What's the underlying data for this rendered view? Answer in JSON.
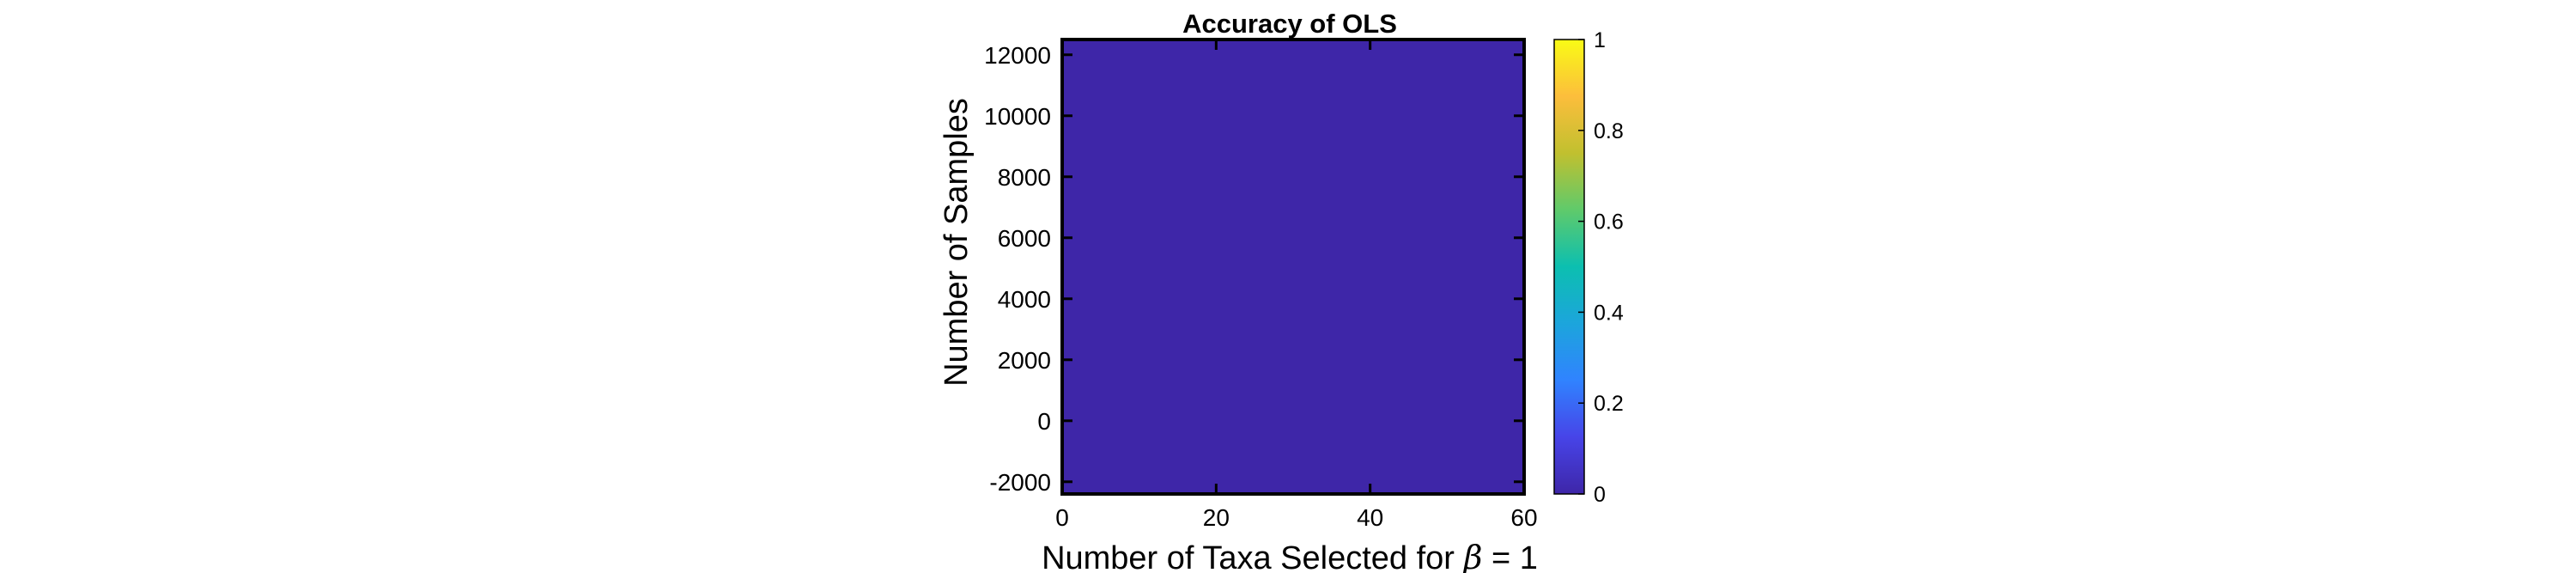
{
  "chart_data": {
    "type": "heatmap",
    "title": "Accuracy of OLS",
    "xlabel_prefix": "Number of Taxa Selected for ",
    "xlabel_symbol": "β",
    "xlabel_suffix": " = 1",
    "ylabel": "Number of Samples",
    "xlim": [
      0,
      60
    ],
    "ylim": [
      -2400,
      12500
    ],
    "x_ticks": [
      0,
      20,
      40,
      60
    ],
    "y_ticks": [
      -2000,
      0,
      2000,
      4000,
      6000,
      8000,
      10000,
      12000
    ],
    "cells": [
      {
        "x_range": [
          0,
          60
        ],
        "y_range": [
          -2400,
          12500
        ],
        "value": 0
      }
    ],
    "colorbar": {
      "range": [
        0,
        1
      ],
      "ticks": [
        0,
        0.2,
        0.4,
        0.6,
        0.8,
        1
      ],
      "colormap": "parula",
      "stops": [
        "#3e26a8",
        "#4744e8",
        "#3083ff",
        "#1ca5dc",
        "#0cbfb0",
        "#5fca6b",
        "#c1c02f",
        "#fcbe3c",
        "#f9fb15"
      ]
    },
    "grid": false
  }
}
